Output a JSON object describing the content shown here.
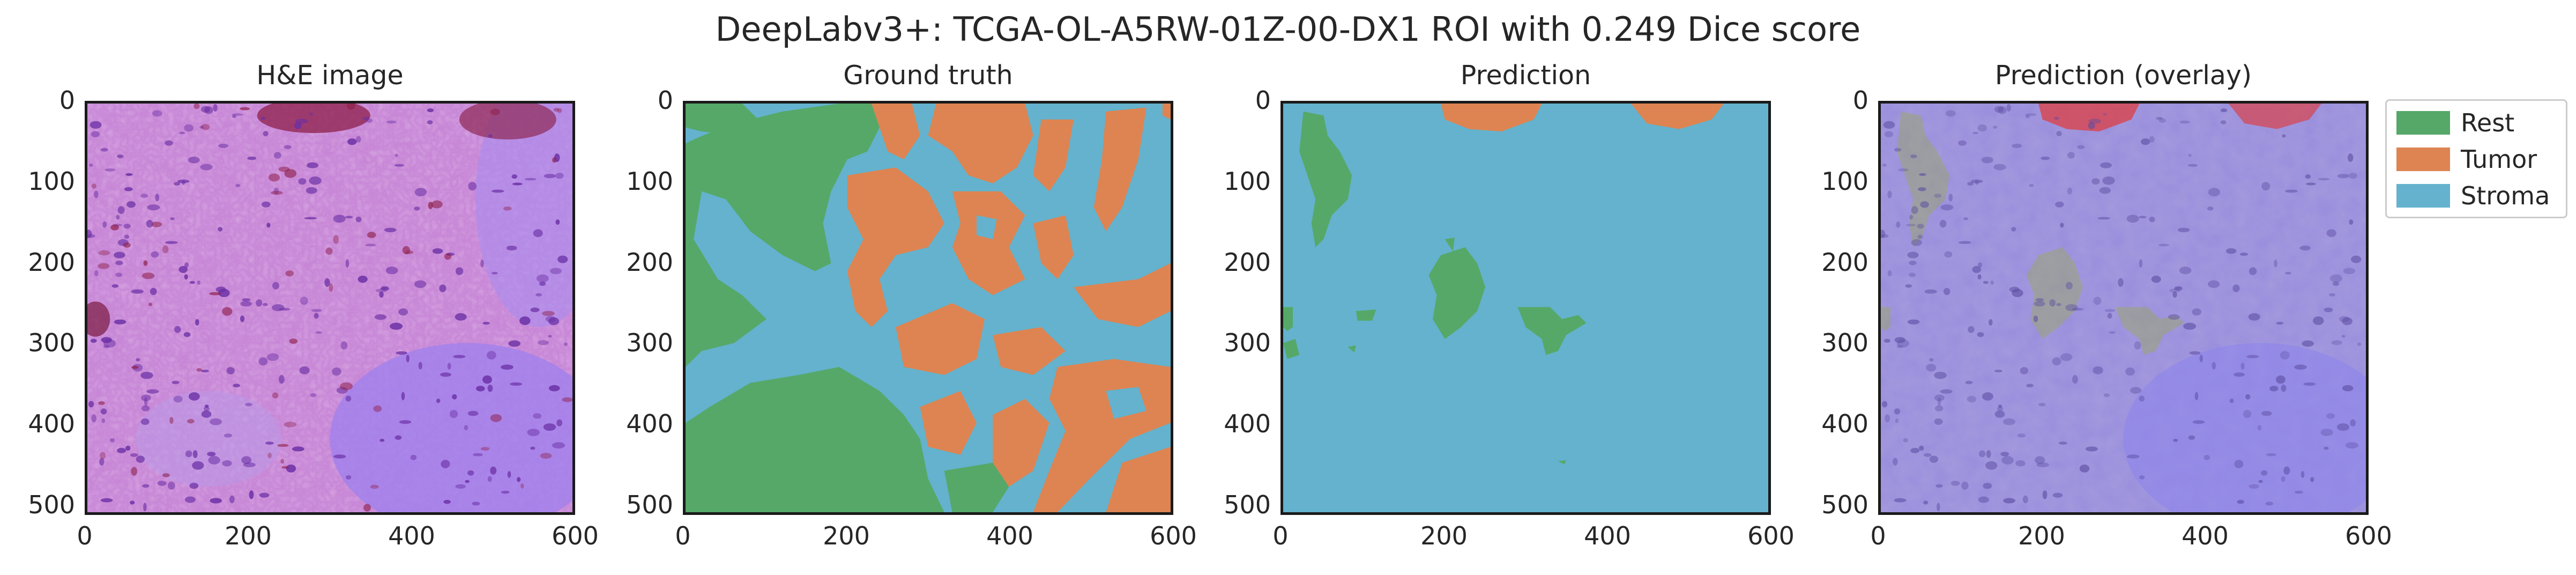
{
  "figure": {
    "suptitle": "DeepLabv3+: TCGA-OL-A5RW-01Z-00-DX1 ROI with 0.249 Dice score"
  },
  "colors": {
    "Rest": "#55a868",
    "Tumor": "#dd8452",
    "Stroma": "#64b2cd",
    "he_base": "#c97fd6",
    "he_light": "#e8b4e2",
    "he_nuclei": "#7a3fb0",
    "he_purple_zone": "#9d7bea",
    "he_dark": "#8e1f4a",
    "overlay_base": "#8f86d9"
  },
  "legend": {
    "items": [
      {
        "label": "Rest",
        "color": "#55a868"
      },
      {
        "label": "Tumor",
        "color": "#dd8452"
      },
      {
        "label": "Stroma",
        "color": "#64b2cd"
      }
    ]
  },
  "chart_data": [
    {
      "type": "image",
      "title": "H&E image",
      "xlim": [
        0,
        600
      ],
      "ylim": [
        512,
        0
      ],
      "xticks": [
        0,
        200,
        400,
        600
      ],
      "yticks": [
        0,
        100,
        200,
        300,
        400,
        500
      ],
      "content": "H&E stained tissue image",
      "grid": false
    },
    {
      "type": "image",
      "title": "Ground truth",
      "xlim": [
        0,
        600
      ],
      "ylim": [
        512,
        0
      ],
      "xticks": [
        0,
        200,
        400,
        600
      ],
      "yticks": [
        0,
        100,
        200,
        300,
        400,
        500
      ],
      "classes": [
        "Rest",
        "Tumor",
        "Stroma"
      ],
      "grid": false
    },
    {
      "type": "image",
      "title": "Prediction",
      "xlim": [
        0,
        600
      ],
      "ylim": [
        512,
        0
      ],
      "xticks": [
        0,
        200,
        400,
        600
      ],
      "yticks": [
        0,
        100,
        200,
        300,
        400,
        500
      ],
      "classes": [
        "Rest",
        "Tumor",
        "Stroma"
      ],
      "grid": false
    },
    {
      "type": "image",
      "title": "Prediction (overlay)",
      "xlim": [
        0,
        600
      ],
      "ylim": [
        512,
        0
      ],
      "xticks": [
        0,
        200,
        400,
        600
      ],
      "yticks": [
        0,
        100,
        200,
        300,
        400,
        500
      ],
      "content": "prediction mask overlaid on H&E image",
      "grid": false
    }
  ]
}
